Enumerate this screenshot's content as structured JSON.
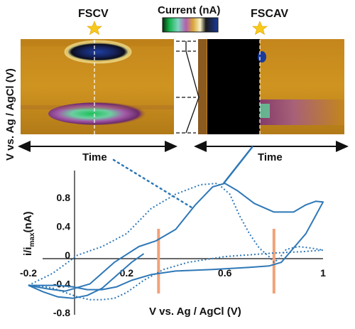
{
  "top": {
    "fscv_label": "FSCV",
    "fscav_label": "FSCAV",
    "colorbar_label": "Current (nA)",
    "y_axis_label": "V vs. Ag / AgCl (V)",
    "left_time_label": "Time",
    "right_time_label": "Time"
  },
  "colors": {
    "trace": "#2e78b7",
    "marker": "#f2a27a",
    "star": "#f7c91b",
    "background_map": "#c48a14"
  },
  "chart_data": {
    "type": "line",
    "title": "",
    "xlabel": "V vs. Ag / AgCl (V)",
    "ylabel_main": "i/i",
    "ylabel_sub": "max",
    "ylabel_tail": "(nA)",
    "xlim": [
      -0.2,
      1.0
    ],
    "ylim": [
      -0.8,
      1.0
    ],
    "x_ticks": [
      "-0.2",
      "0.2",
      "0.6",
      "1"
    ],
    "y_ticks": [
      "0.8",
      "0.4",
      "0",
      "-0.4",
      "-0.8"
    ],
    "x_tick_values": [
      -0.2,
      0.2,
      0.6,
      1.0
    ],
    "y_tick_values": [
      0.8,
      0.4,
      0,
      -0.4,
      -0.8
    ],
    "markers_x": [
      0.33,
      0.8
    ],
    "series": [
      {
        "style": "solid",
        "x": [
          -0.2,
          -0.12,
          -0.05,
          0.05,
          0.15,
          0.25,
          0.32,
          0.4,
          0.48,
          0.55,
          0.6,
          0.65,
          0.72,
          0.8,
          0.88,
          0.93,
          0.97,
          1.0,
          0.97,
          0.93,
          0.88,
          0.83,
          0.78,
          0.7,
          0.55,
          0.4,
          0.3,
          0.22,
          0.16,
          0.1,
          0.04,
          -0.02,
          -0.08,
          -0.14,
          -0.2
        ],
        "y": [
          -0.42,
          -0.47,
          -0.5,
          -0.4,
          -0.1,
          0.12,
          0.2,
          0.36,
          0.7,
          0.95,
          1.0,
          0.9,
          0.72,
          0.6,
          0.6,
          0.7,
          0.75,
          0.74,
          0.55,
          0.3,
          0.1,
          -0.1,
          -0.15,
          -0.17,
          -0.2,
          -0.22,
          -0.27,
          -0.35,
          -0.44,
          -0.48,
          -0.48,
          -0.44,
          -0.42,
          -0.42,
          -0.42
        ]
      },
      {
        "style": "solid",
        "x": [
          -0.2,
          -0.14,
          -0.08,
          -0.02,
          0.04,
          0.1,
          0.16,
          0.22,
          0.27
        ],
        "y": [
          -0.42,
          -0.51,
          -0.58,
          -0.6,
          -0.56,
          -0.46,
          -0.28,
          -0.1,
          0.02
        ]
      },
      {
        "style": "dotted",
        "x": [
          -0.2,
          -0.1,
          0.0,
          0.1,
          0.2,
          0.3,
          0.4,
          0.5,
          0.57,
          0.62,
          0.66,
          0.7,
          0.74,
          0.78,
          0.8,
          0.82,
          0.85,
          0.9,
          0.95,
          1.0,
          0.92,
          0.8,
          0.6,
          0.45,
          0.35,
          0.27,
          0.2,
          0.15,
          0.1,
          0.05,
          0.0,
          -0.05,
          -0.1,
          -0.15,
          -0.2
        ],
        "y": [
          -0.42,
          -0.25,
          0.0,
          0.12,
          0.3,
          0.65,
          0.85,
          0.98,
          1.0,
          0.85,
          0.55,
          0.3,
          0.1,
          -0.02,
          -0.1,
          -0.05,
          0.08,
          0.12,
          0.1,
          0.07,
          0.05,
          0.03,
          -0.02,
          -0.1,
          -0.2,
          -0.35,
          -0.52,
          -0.6,
          -0.62,
          -0.62,
          -0.58,
          -0.52,
          -0.46,
          -0.43,
          -0.42
        ]
      }
    ]
  }
}
